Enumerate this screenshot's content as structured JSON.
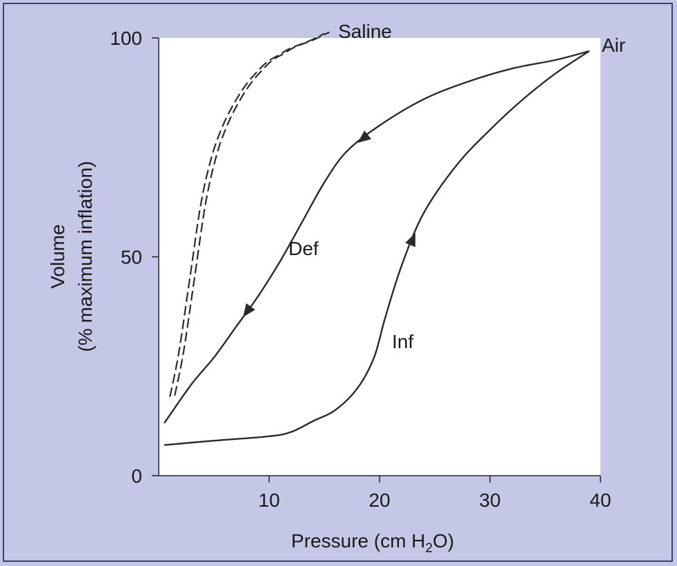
{
  "chart_data": {
    "type": "line",
    "title": "",
    "xlabel": "Pressure (cm H",
    "xlabel_sub": "2",
    "xlabel_end": "O)",
    "ylabel_line1": "Volume",
    "ylabel_line2": "(% maximum inflation)",
    "xlim": [
      0,
      40
    ],
    "ylim": [
      0,
      100
    ],
    "x_ticks": [
      0,
      10,
      20,
      30,
      40
    ],
    "y_ticks": [
      0,
      50,
      100
    ],
    "x_tick_labels": [
      "10",
      "20",
      "30",
      "40"
    ],
    "y_tick_labels": [
      "0",
      "50",
      "100"
    ],
    "grid": false,
    "series": [
      {
        "name": "Inf",
        "curve_group": "Air",
        "direction": "increasing",
        "x": [
          0.5,
          5,
          10,
          12,
          14,
          16,
          18,
          19.5,
          20.5,
          22,
          24,
          27,
          30,
          33,
          36,
          39
        ],
        "y": [
          7,
          8,
          9,
          10,
          12.5,
          15,
          20,
          27,
          36,
          48,
          60,
          71,
          79,
          86,
          92,
          97
        ]
      },
      {
        "name": "Def",
        "curve_group": "Air",
        "direction": "decreasing",
        "x": [
          39,
          36,
          32,
          28,
          24,
          20,
          17,
          15,
          13,
          11,
          9,
          7,
          5,
          3,
          0.5
        ],
        "y": [
          97,
          95,
          93,
          90,
          86,
          80,
          74,
          67,
          58,
          49,
          41,
          34,
          27,
          21,
          12
        ]
      },
      {
        "name": "Saline",
        "style": "dashed",
        "x": [
          1.2,
          2,
          3,
          4,
          5,
          6,
          7,
          8,
          9,
          10,
          11,
          12,
          13,
          14,
          15.2
        ],
        "y": [
          18,
          28,
          45,
          62,
          73,
          80,
          85,
          89,
          92,
          94.5,
          96,
          97.5,
          98.5,
          99.5,
          101
        ]
      }
    ],
    "annotations": [
      {
        "text": "Air",
        "at": "end of inflation curve"
      },
      {
        "text": "Def",
        "at": "deflation limb"
      },
      {
        "text": "Inf",
        "at": "inflation limb"
      },
      {
        "text": "Saline",
        "at": "top of dashed curve"
      }
    ]
  },
  "colors": {
    "background": "#c4c7e6",
    "plot_area": "#ffffff",
    "curve": "#2a2a2a",
    "frame": "#3d3f70"
  }
}
